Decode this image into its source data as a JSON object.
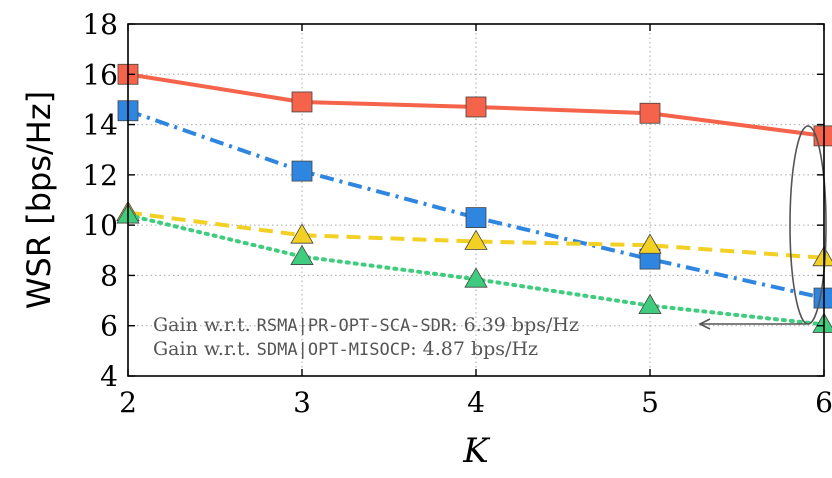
{
  "chart_data": {
    "type": "line",
    "xlabel": "K",
    "ylabel": "WSR [bps/Hz]",
    "x": [
      2,
      3,
      4,
      5,
      6
    ],
    "xlim": [
      2,
      6
    ],
    "ylim": [
      4,
      18
    ],
    "xticks": [
      "2",
      "3",
      "4",
      "5",
      "6"
    ],
    "yticks": [
      "4",
      "6",
      "8",
      "10",
      "12",
      "14",
      "16",
      "18"
    ],
    "grid": true,
    "series": [
      {
        "values": [
          16.0,
          14.9,
          14.7,
          14.45,
          13.55
        ],
        "color": "#f4634a",
        "style": "solid",
        "marker": "square"
      },
      {
        "values": [
          14.55,
          12.15,
          10.3,
          8.65,
          7.1
        ],
        "color": "#2f86e0",
        "style": "dashdot",
        "marker": "square"
      },
      {
        "values": [
          10.5,
          9.6,
          9.35,
          9.2,
          8.7
        ],
        "color": "#f2d024",
        "style": "dashed",
        "marker": "triangle"
      },
      {
        "values": [
          10.4,
          8.75,
          7.85,
          6.8,
          6.05
        ],
        "color": "#3fcc7e",
        "style": "dotted",
        "marker": "triangle"
      }
    ],
    "annotations": [
      {
        "prefix": "Gain w.r.t. ",
        "scheme": "RSMA|PR-OPT-SCA-SDR",
        "suffix": ": 6.39 bps/Hz"
      },
      {
        "prefix": "Gain w.r.t. ",
        "scheme": "SDMA|OPT-MISOCP",
        "suffix": ": 4.87 bps/Hz"
      }
    ]
  }
}
